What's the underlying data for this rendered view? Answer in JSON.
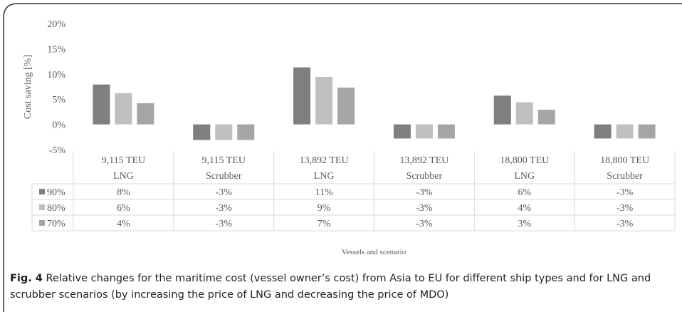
{
  "chart_data": {
    "type": "bar",
    "y_label": "Cost saving [%]",
    "x_label": "Vessels and scenario",
    "categories": [
      [
        "9,115 TEU",
        "LNG"
      ],
      [
        "9,115 TEU",
        "Scrubber"
      ],
      [
        "13,892 TEU",
        "LNG"
      ],
      [
        "13,892 TEU",
        "Scrubber"
      ],
      [
        "18,800 TEU",
        "LNG"
      ],
      [
        "18,800 TEU",
        "Scrubber"
      ]
    ],
    "series": [
      {
        "name": "90%",
        "color": "#7f7f7f",
        "values": [
          7.9,
          -3.1,
          11.3,
          -2.8,
          5.7,
          -2.8
        ],
        "value_labels": [
          "8%",
          "-3%",
          "11%",
          "-3%",
          "6%",
          "-3%"
        ]
      },
      {
        "name": "80%",
        "color": "#bfbfbf",
        "values": [
          6.2,
          -3.1,
          9.4,
          -2.8,
          4.4,
          -2.8
        ],
        "value_labels": [
          "6%",
          "-3%",
          "9%",
          "-3%",
          "4%",
          "-3%"
        ]
      },
      {
        "name": "70%",
        "color": "#a5a5a5",
        "values": [
          4.2,
          -3.1,
          7.3,
          -2.8,
          2.9,
          -2.8
        ],
        "value_labels": [
          "4%",
          "-3%",
          "7%",
          "-3%",
          "3%",
          "-3%"
        ]
      }
    ],
    "ylim": [
      -5,
      20
    ],
    "yticks": [
      {
        "value": -5,
        "label": "-5%"
      },
      {
        "value": 0,
        "label": "0%"
      },
      {
        "value": 5,
        "label": "5%"
      },
      {
        "value": 10,
        "label": "10%"
      },
      {
        "value": 15,
        "label": "15%"
      },
      {
        "value": 20,
        "label": "20%"
      }
    ],
    "caption": {
      "label": "Fig. 4",
      "text": "Relative changes for the maritime cost (vessel owner’s cost) from Asia to EU for different ship types and for LNG and scrubber scenarios (by increasing the price of LNG and decreasing the price of MDO)"
    }
  }
}
